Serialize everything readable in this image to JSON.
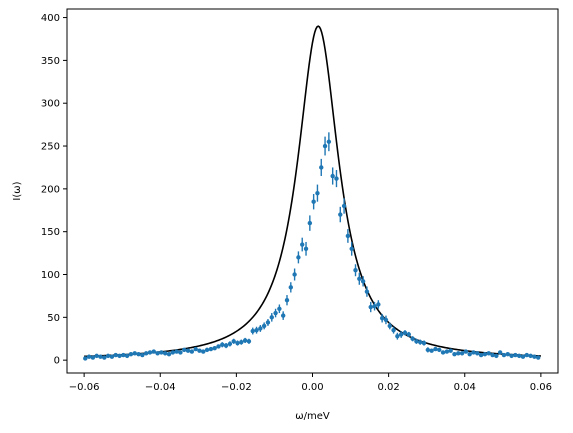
{
  "chart_data": {
    "type": "scatter",
    "title": "",
    "xlabel": "ω/meV",
    "ylabel": "I(ω)",
    "xlim": [
      -0.0645,
      0.0645
    ],
    "ylim": [
      -15,
      410
    ],
    "grid": false,
    "x_ticks": [
      -0.06,
      -0.04,
      -0.02,
      0.0,
      0.02,
      0.04,
      0.06
    ],
    "x_tick_labels": [
      "−0.06",
      "−0.04",
      "−0.02",
      "0.00",
      "0.02",
      "0.04",
      "0.06"
    ],
    "y_ticks": [
      0,
      50,
      100,
      150,
      200,
      250,
      300,
      350,
      400
    ],
    "y_tick_labels": [
      "0",
      "50",
      "100",
      "150",
      "200",
      "250",
      "300",
      "350",
      "400"
    ],
    "colors": {
      "data": "#1f77b4",
      "curve": "#000000"
    },
    "series": [
      {
        "kind": "errorbar",
        "x": [
          -0.0597,
          -0.0587,
          -0.0577,
          -0.0567,
          -0.0557,
          -0.0547,
          -0.0537,
          -0.0527,
          -0.0517,
          -0.0507,
          -0.0497,
          -0.0487,
          -0.0477,
          -0.0467,
          -0.0457,
          -0.0447,
          -0.0437,
          -0.0427,
          -0.0417,
          -0.0407,
          -0.0397,
          -0.0387,
          -0.0377,
          -0.0367,
          -0.0357,
          -0.0347,
          -0.0337,
          -0.0327,
          -0.0317,
          -0.0307,
          -0.0297,
          -0.0287,
          -0.0277,
          -0.0267,
          -0.0257,
          -0.0247,
          -0.0237,
          -0.0227,
          -0.0217,
          -0.0207,
          -0.0197,
          -0.0187,
          -0.0177,
          -0.0167,
          -0.0157,
          -0.0147,
          -0.0137,
          -0.0127,
          -0.0117,
          -0.0107,
          -0.0097,
          -0.0087,
          -0.0077,
          -0.0067,
          -0.0057,
          -0.0047,
          -0.0037,
          -0.0027,
          -0.0017,
          -0.0007,
          0.0003,
          0.0013,
          0.0023,
          0.0033,
          0.0043,
          0.0053,
          0.0063,
          0.0073,
          0.0083,
          0.0093,
          0.0103,
          0.0113,
          0.0123,
          0.0133,
          0.0143,
          0.0153,
          0.0163,
          0.0173,
          0.0183,
          0.0193,
          0.0203,
          0.0213,
          0.0223,
          0.0233,
          0.0243,
          0.0253,
          0.0263,
          0.0273,
          0.0283,
          0.0293,
          0.0303,
          0.0313,
          0.0323,
          0.0333,
          0.0343,
          0.0353,
          0.0363,
          0.0373,
          0.0383,
          0.0393,
          0.0403,
          0.0413,
          0.0423,
          0.0433,
          0.0443,
          0.0453,
          0.0463,
          0.0473,
          0.0483,
          0.0493,
          0.0503,
          0.0513,
          0.0523,
          0.0533,
          0.0543,
          0.0553,
          0.0563,
          0.0573,
          0.0583,
          0.0593
        ],
        "y": [
          2,
          4,
          3,
          5,
          4,
          3,
          5,
          4,
          6,
          5,
          6,
          5,
          7,
          8,
          7,
          6,
          8,
          9,
          10,
          8,
          9,
          8,
          7,
          9,
          10,
          9,
          12,
          11,
          10,
          13,
          11,
          10,
          12,
          13,
          14,
          16,
          18,
          17,
          19,
          22,
          20,
          21,
          23,
          22,
          34,
          35,
          37,
          40,
          44,
          50,
          55,
          60,
          52,
          70,
          85,
          100,
          120,
          135,
          130,
          160,
          185,
          195,
          225,
          250,
          255,
          215,
          212,
          170,
          180,
          145,
          130,
          105,
          95,
          92,
          80,
          62,
          63,
          65,
          49,
          47,
          40,
          35,
          28,
          30,
          32,
          30,
          25,
          22,
          21,
          20,
          12,
          11,
          13,
          12,
          9,
          10,
          11,
          7,
          8,
          8,
          10,
          7,
          9,
          8,
          6,
          7,
          8,
          6,
          5,
          9,
          6,
          7,
          5,
          6,
          5,
          4,
          6,
          5,
          4,
          3
        ],
        "yerr": [
          2,
          2,
          2,
          2,
          2,
          2,
          2,
          2,
          2,
          2,
          2,
          2,
          2,
          2,
          2,
          2,
          2,
          2,
          2,
          2,
          2,
          2,
          2,
          2,
          2,
          2,
          2,
          2,
          2,
          2,
          2,
          2,
          2,
          2,
          2,
          2,
          3,
          3,
          3,
          3,
          3,
          3,
          3,
          3,
          4,
          4,
          4,
          4,
          4,
          5,
          5,
          5,
          5,
          6,
          6,
          7,
          7,
          8,
          8,
          9,
          9,
          10,
          10,
          11,
          11,
          10,
          10,
          9,
          9,
          8,
          8,
          7,
          7,
          6,
          6,
          6,
          5,
          5,
          5,
          5,
          4,
          4,
          4,
          4,
          3,
          3,
          3,
          3,
          3,
          3,
          3,
          2,
          2,
          2,
          2,
          2,
          2,
          2,
          2,
          2,
          2,
          2,
          2,
          2,
          2,
          2,
          2,
          2,
          2,
          2,
          2,
          2,
          2,
          2,
          2,
          2,
          2,
          2,
          2,
          2
        ]
      },
      {
        "kind": "line",
        "x0": 0.0015,
        "gamma": 0.0066,
        "amp": 390,
        "x_range": [
          -0.06,
          0.06
        ]
      }
    ]
  }
}
